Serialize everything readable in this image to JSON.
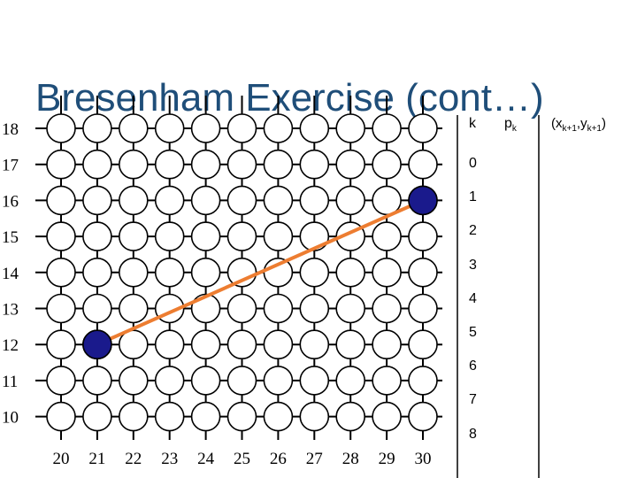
{
  "title": "Bresenham Exercise (cont…)",
  "y_labels": [
    "18",
    "17",
    "16",
    "15",
    "14",
    "13",
    "12",
    "11",
    "10"
  ],
  "x_labels": [
    "20",
    "21",
    "22",
    "23",
    "24",
    "25",
    "26",
    "27",
    "28",
    "29",
    "30"
  ],
  "table": {
    "headers": {
      "k": "k",
      "p": "p",
      "p_sub": "k",
      "next_open": "(x",
      "next_sub1": "k+1",
      "next_mid": ",y",
      "next_sub2": "k+1",
      "next_close": ")"
    },
    "k_values": [
      "0",
      "1",
      "2",
      "3",
      "4",
      "5",
      "6",
      "7",
      "8"
    ]
  },
  "endpoints": [
    {
      "x": 21,
      "y": 12
    },
    {
      "x": 30,
      "y": 16
    }
  ],
  "colors": {
    "title": "#1f4e79",
    "line": "#ed7d31",
    "endpoint": "#1a1a8c",
    "grid": "#000000"
  }
}
